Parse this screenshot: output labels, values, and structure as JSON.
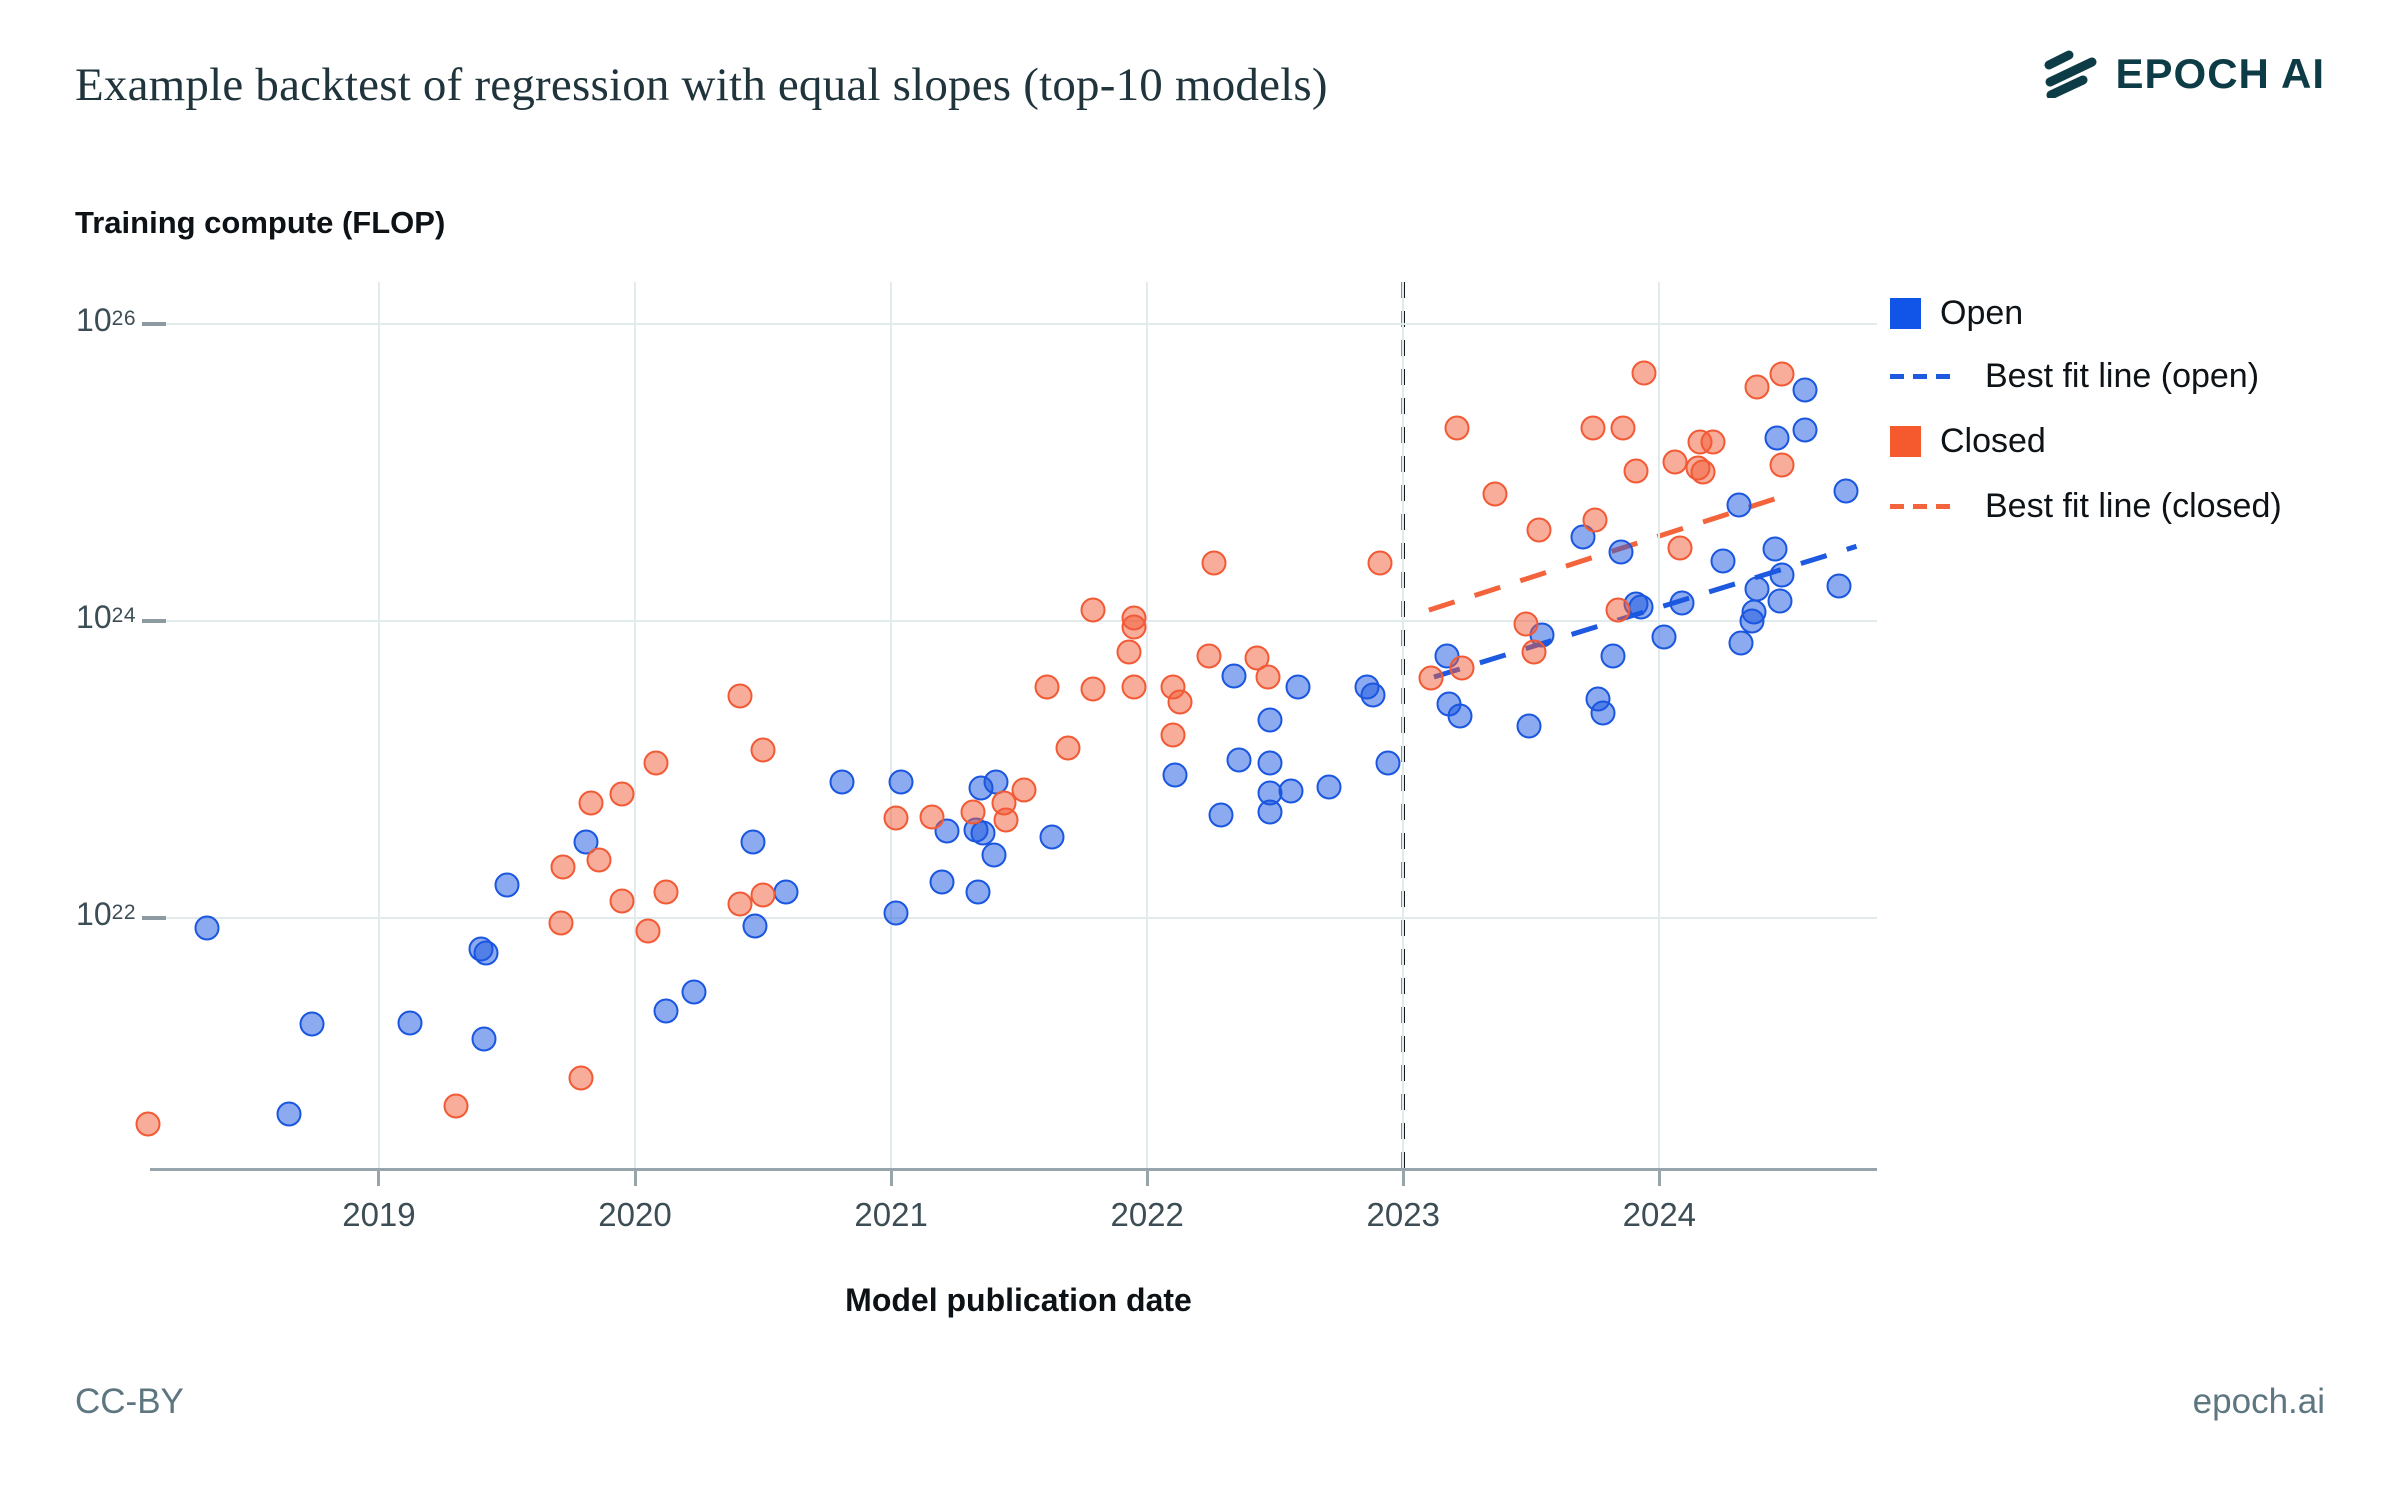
{
  "title": "Example backtest of regression with equal slopes (top-10 models)",
  "brand": {
    "logo_text": "EPOCH AI",
    "logo_color": "#0e3c46"
  },
  "y_axis": {
    "title": "Training compute (FLOP)",
    "ticks": [
      {
        "base": "10",
        "exp": "26",
        "log": 26
      },
      {
        "base": "10",
        "exp": "24",
        "log": 24
      },
      {
        "base": "10",
        "exp": "22",
        "log": 22
      }
    ]
  },
  "x_axis": {
    "title": "Model publication date",
    "ticks": [
      {
        "label": "2019",
        "year": 2019
      },
      {
        "label": "2020",
        "year": 2020
      },
      {
        "label": "2021",
        "year": 2021
      },
      {
        "label": "2022",
        "year": 2022
      },
      {
        "label": "2023",
        "year": 2023
      },
      {
        "label": "2024",
        "year": 2024
      }
    ]
  },
  "legend": [
    {
      "type": "swatch",
      "label": "Open",
      "color": "#1155e8"
    },
    {
      "type": "dash",
      "label": "Best fit line (open)",
      "color": "#1d5ae0"
    },
    {
      "type": "swatch",
      "label": "Closed",
      "color": "#f45a2e"
    },
    {
      "type": "dash",
      "label": "Best fit line (closed)",
      "color": "#f4643c"
    }
  ],
  "footer": {
    "left": "CC-BY",
    "right": "epoch.ai"
  },
  "colors": {
    "open_fill": "rgba(26,86,224,0.50)",
    "open_stroke": "#1a56e0",
    "closed_fill": "rgba(242,90,53,0.50)",
    "closed_stroke": "#f25a35",
    "fit_open": "#1d5ae0",
    "fit_closed": "#f4643c",
    "cutoff_line": "#14181c",
    "gridline": "#e1ebec",
    "axis_line": "#97a4ab"
  },
  "chart_data": {
    "type": "scatter",
    "title": "Example backtest of regression with equal slopes (top-10 models)",
    "xlabel": "Model publication date",
    "ylabel": "Training compute (FLOP)",
    "x_range": [
      2018.145,
      2024.85
    ],
    "y_log_range": [
      20.3,
      26.28
    ],
    "grid": true,
    "legend_position": "top-right",
    "cutoff_year": 2023,
    "y_scale": "log10",
    "series": [
      {
        "name": "Open",
        "points": [
          [
            2018.33,
            21.93
          ],
          [
            2018.65,
            20.68
          ],
          [
            2018.74,
            21.28
          ],
          [
            2019.12,
            21.29
          ],
          [
            2019.41,
            21.18
          ],
          [
            2019.4,
            21.79
          ],
          [
            2019.42,
            21.76
          ],
          [
            2019.5,
            22.22
          ],
          [
            2019.81,
            22.51
          ],
          [
            2020.12,
            21.37
          ],
          [
            2020.23,
            21.5
          ],
          [
            2020.46,
            22.51
          ],
          [
            2020.47,
            21.94
          ],
          [
            2020.59,
            22.17
          ],
          [
            2020.81,
            22.91
          ],
          [
            2021.02,
            22.03
          ],
          [
            2021.04,
            22.91
          ],
          [
            2021.2,
            22.24
          ],
          [
            2021.22,
            22.58
          ],
          [
            2021.33,
            22.59
          ],
          [
            2021.34,
            22.17
          ],
          [
            2021.35,
            22.87
          ],
          [
            2021.36,
            22.57
          ],
          [
            2021.4,
            22.42
          ],
          [
            2021.41,
            22.91
          ],
          [
            2021.63,
            22.54
          ],
          [
            2022.11,
            22.96
          ],
          [
            2022.29,
            22.69
          ],
          [
            2022.34,
            23.63
          ],
          [
            2022.36,
            23.06
          ],
          [
            2022.48,
            23.04
          ],
          [
            2022.48,
            22.84
          ],
          [
            2022.48,
            22.71
          ],
          [
            2022.48,
            23.33
          ],
          [
            2022.56,
            22.85
          ],
          [
            2022.59,
            23.55
          ],
          [
            2022.71,
            22.88
          ],
          [
            2022.86,
            23.55
          ],
          [
            2022.88,
            23.5
          ],
          [
            2022.94,
            23.04
          ],
          [
            2023.17,
            23.76
          ],
          [
            2023.18,
            23.44
          ],
          [
            2023.22,
            23.36
          ],
          [
            2023.49,
            23.29
          ],
          [
            2023.54,
            23.9
          ],
          [
            2023.7,
            24.56
          ],
          [
            2023.76,
            23.47
          ],
          [
            2023.78,
            23.38
          ],
          [
            2023.82,
            23.76
          ],
          [
            2023.85,
            24.46
          ],
          [
            2023.91,
            24.11
          ],
          [
            2023.93,
            24.09
          ],
          [
            2024.02,
            23.89
          ],
          [
            2024.09,
            24.12
          ],
          [
            2024.25,
            24.4
          ],
          [
            2024.31,
            24.78
          ],
          [
            2024.32,
            23.85
          ],
          [
            2024.36,
            24.0
          ],
          [
            2024.37,
            24.06
          ],
          [
            2024.38,
            24.21
          ],
          [
            2024.45,
            24.48
          ],
          [
            2024.46,
            25.23
          ],
          [
            2024.47,
            24.13
          ],
          [
            2024.48,
            24.31
          ],
          [
            2024.57,
            25.55
          ],
          [
            2024.57,
            25.28
          ],
          [
            2024.7,
            24.23
          ],
          [
            2024.73,
            24.87
          ]
        ]
      },
      {
        "name": "Closed",
        "points": [
          [
            2018.1,
            20.61
          ],
          [
            2019.3,
            20.73
          ],
          [
            2019.71,
            21.96
          ],
          [
            2019.72,
            22.34
          ],
          [
            2019.79,
            20.92
          ],
          [
            2019.83,
            22.77
          ],
          [
            2019.86,
            22.39
          ],
          [
            2019.95,
            22.83
          ],
          [
            2019.95,
            22.11
          ],
          [
            2020.05,
            21.91
          ],
          [
            2020.08,
            23.04
          ],
          [
            2020.12,
            22.17
          ],
          [
            2020.41,
            23.49
          ],
          [
            2020.41,
            22.09
          ],
          [
            2020.5,
            23.13
          ],
          [
            2020.5,
            22.15
          ],
          [
            2021.02,
            22.67
          ],
          [
            2021.16,
            22.68
          ],
          [
            2021.32,
            22.71
          ],
          [
            2021.44,
            22.77
          ],
          [
            2021.45,
            22.66
          ],
          [
            2021.52,
            22.86
          ],
          [
            2021.61,
            23.55
          ],
          [
            2021.69,
            23.14
          ],
          [
            2021.79,
            23.54
          ],
          [
            2021.79,
            24.07
          ],
          [
            2021.93,
            23.79
          ],
          [
            2021.95,
            23.55
          ],
          [
            2021.95,
            24.02
          ],
          [
            2021.95,
            23.96
          ],
          [
            2022.1,
            23.55
          ],
          [
            2022.1,
            23.23
          ],
          [
            2022.13,
            23.45
          ],
          [
            2022.24,
            23.76
          ],
          [
            2022.26,
            24.39
          ],
          [
            2022.43,
            23.75
          ],
          [
            2022.47,
            23.62
          ],
          [
            2022.91,
            24.39
          ],
          [
            2023.11,
            23.61
          ],
          [
            2023.21,
            25.3
          ],
          [
            2023.23,
            23.68
          ],
          [
            2023.36,
            24.85
          ],
          [
            2023.48,
            23.98
          ],
          [
            2023.51,
            23.79
          ],
          [
            2023.53,
            24.61
          ],
          [
            2023.74,
            25.3
          ],
          [
            2023.75,
            24.68
          ],
          [
            2023.84,
            24.07
          ],
          [
            2023.86,
            25.3
          ],
          [
            2023.91,
            25.01
          ],
          [
            2023.94,
            25.67
          ],
          [
            2024.06,
            25.07
          ],
          [
            2024.08,
            24.49
          ],
          [
            2024.15,
            25.03
          ],
          [
            2024.16,
            25.2
          ],
          [
            2024.17,
            25.0
          ],
          [
            2024.21,
            25.2
          ],
          [
            2024.38,
            25.57
          ],
          [
            2024.48,
            25.66
          ],
          [
            2024.48,
            25.05
          ]
        ]
      }
    ],
    "fit_lines": [
      {
        "name": "Best fit line (open)",
        "series": "Open",
        "start": [
          2023.12,
          23.62
        ],
        "end": [
          2024.77,
          24.5
        ]
      },
      {
        "name": "Best fit line (closed)",
        "series": "Closed",
        "start": [
          2023.1,
          24.07
        ],
        "end": [
          2024.47,
          24.83
        ]
      }
    ]
  }
}
